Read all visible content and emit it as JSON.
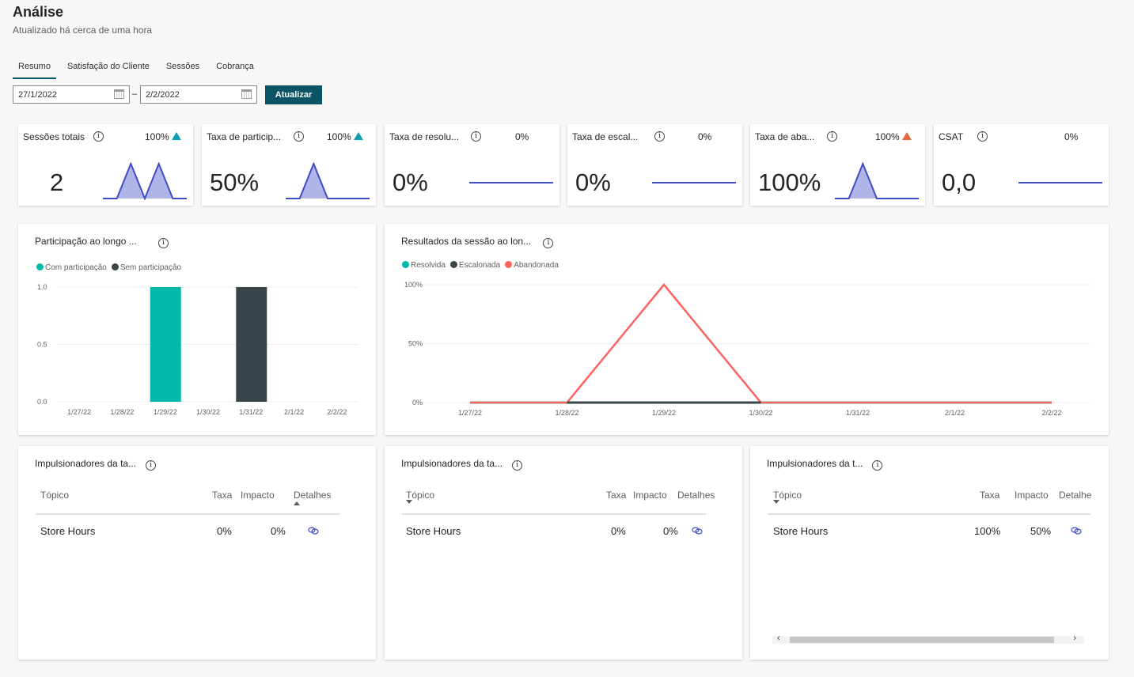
{
  "header": {
    "title": "Análise",
    "subtitle": "Atualizado há cerca de uma hora"
  },
  "tabs": [
    {
      "label": "Resumo",
      "active": true
    },
    {
      "label": "Satisfação do Cliente"
    },
    {
      "label": "Sessões"
    },
    {
      "label": "Cobrança"
    }
  ],
  "filters": {
    "start_date": "27/1/2022",
    "end_date": "2/2/2022",
    "separator": "–",
    "refresh_label": "Atualizar"
  },
  "kpis": [
    {
      "name": "Sessões totais",
      "value": "2",
      "change": "100%",
      "trend": "up",
      "trend_color": "#0ba2b0",
      "spark": [
        0,
        0,
        1,
        0,
        1,
        0,
        0
      ]
    },
    {
      "name": "Taxa de particip...",
      "value": "50%",
      "change": "100%",
      "trend": "up",
      "trend_color": "#0ba2b0",
      "spark": [
        0,
        0,
        1,
        0,
        0,
        0,
        0
      ]
    },
    {
      "name": "Taxa de resolu...",
      "value": "0%",
      "change": "0%",
      "trend": "none",
      "spark": [
        0,
        0,
        0,
        0,
        0,
        0,
        0
      ]
    },
    {
      "name": "Taxa de escal...",
      "value": "0%",
      "change": "0%",
      "trend": "none",
      "spark": [
        0,
        0,
        0,
        0,
        0,
        0,
        0
      ]
    },
    {
      "name": "Taxa de aba...",
      "value": "100%",
      "change": "100%",
      "trend": "up",
      "trend_color": "#e8663b",
      "spark": [
        0,
        0,
        1,
        0,
        0,
        0,
        0
      ]
    },
    {
      "name": "CSAT",
      "value": "0,0",
      "change": "0%",
      "trend": "none",
      "spark": [
        0,
        0,
        0,
        0,
        0,
        0,
        0
      ]
    }
  ],
  "chart_data": [
    {
      "type": "bar",
      "title": "Participação ao longo ...",
      "categories": [
        "1/27/22",
        "1/28/22",
        "1/29/22",
        "1/30/22",
        "1/31/22",
        "2/1/22",
        "2/2/22"
      ],
      "series": [
        {
          "name": "Com participação",
          "color": "#01b8aa",
          "values": [
            0,
            0,
            1,
            0,
            0,
            0,
            0
          ]
        },
        {
          "name": "Sem participação",
          "color": "#374649",
          "values": [
            0,
            0,
            0,
            0,
            1,
            0,
            0
          ]
        }
      ],
      "ylim": [
        0,
        1
      ],
      "yticks": [
        "0.0",
        "0.5",
        "1.0"
      ],
      "legend": "top-left",
      "grid": true
    },
    {
      "type": "line",
      "title": "Resultados da sessão ao lon...",
      "categories": [
        "1/27/22",
        "1/28/22",
        "1/29/22",
        "1/30/22",
        "1/31/22",
        "2/1/22",
        "2/2/22"
      ],
      "series": [
        {
          "name": "Resolvida",
          "color": "#01b8aa",
          "values": [
            0,
            0,
            0,
            0,
            0,
            0,
            0
          ]
        },
        {
          "name": "Escalonada",
          "color": "#374649",
          "values": [
            null,
            0,
            0,
            0,
            null,
            null,
            null
          ]
        },
        {
          "name": "Abandonada",
          "color": "#fd625e",
          "values": [
            0,
            0,
            100,
            0,
            0,
            0,
            0
          ]
        }
      ],
      "ylim": [
        0,
        100
      ],
      "yticks": [
        "0%",
        "50%",
        "100%"
      ],
      "legend": "top-left",
      "grid": true
    }
  ],
  "drivers": [
    {
      "title": "Impulsionadores da ta...",
      "headers": [
        "Tópico",
        "Taxa",
        "Impacto",
        "Detalhes"
      ],
      "rows": [
        {
          "topic": "Store Hours",
          "rate": "0%",
          "impact": "0%"
        }
      ]
    },
    {
      "title": "Impulsionadores da ta...",
      "headers": [
        "Tópico",
        "Taxa",
        "Impacto",
        "Detalhes"
      ],
      "rows": [
        {
          "topic": "Store Hours",
          "rate": "0%",
          "impact": "0%"
        }
      ]
    },
    {
      "title": "Impulsionadores da t...",
      "headers": [
        "Tópico",
        "Taxa",
        "Impacto",
        "Detalhe"
      ],
      "rows": [
        {
          "topic": "Store Hours",
          "rate": "100%",
          "impact": "50%"
        }
      ]
    }
  ]
}
